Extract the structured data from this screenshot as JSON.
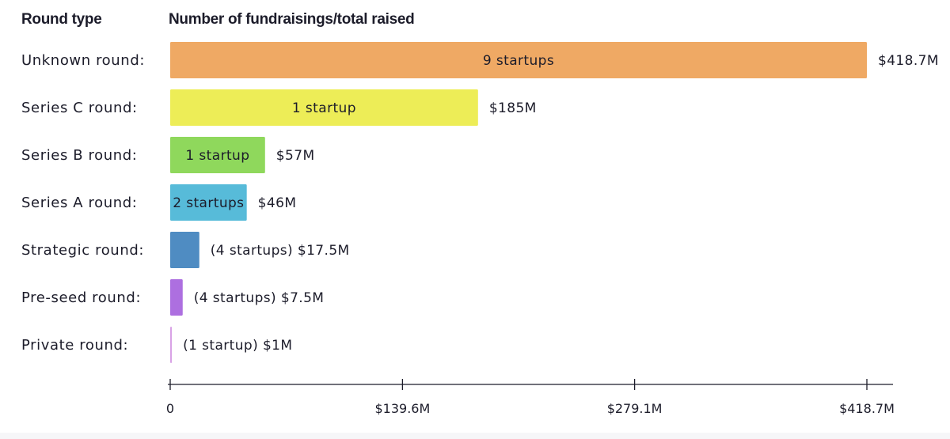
{
  "headers": {
    "round_type": "Round type",
    "metric": "Number of fundraisings/total raised"
  },
  "chart_data": {
    "type": "bar",
    "orientation": "horizontal",
    "title": "",
    "xlabel": "",
    "ylabel": "",
    "xlim": [
      0,
      418.7
    ],
    "x_unit": "$M",
    "ticks": [
      {
        "value": 0,
        "label": "0"
      },
      {
        "value": 139.6,
        "label": "$139.6M"
      },
      {
        "value": 279.1,
        "label": "$279.1M"
      },
      {
        "value": 418.7,
        "label": "$418.7M"
      }
    ],
    "categories": [
      "Unknown round:",
      "Series C round:",
      "Series B round:",
      "Series A round:",
      "Strategic round:",
      "Pre-seed round:",
      "Private round:"
    ],
    "values": [
      418.7,
      185,
      57,
      46,
      17.5,
      7.5,
      1
    ],
    "bars": [
      {
        "category": "Unknown round:",
        "value": 418.7,
        "startups": 9,
        "inside_label": "9 startups",
        "outside_label": "$418.7M",
        "color": "#efa964"
      },
      {
        "category": "Series C round:",
        "value": 185,
        "startups": 1,
        "inside_label": "1 startup",
        "outside_label": "$185M",
        "color": "#eded57"
      },
      {
        "category": "Series B round:",
        "value": 57,
        "startups": 1,
        "inside_label": "1 startup",
        "outside_label": "$57M",
        "color": "#8fd85c"
      },
      {
        "category": "Series A round:",
        "value": 46,
        "startups": 2,
        "inside_label": "2 startups",
        "outside_label": "$46M",
        "color": "#57bbd9"
      },
      {
        "category": "Strategic round:",
        "value": 17.5,
        "startups": 4,
        "inside_label": "",
        "outside_label": "(4 startups) $17.5M",
        "color": "#4f8cc2"
      },
      {
        "category": "Pre-seed round:",
        "value": 7.5,
        "startups": 4,
        "inside_label": "",
        "outside_label": "(4 startups) $7.5M",
        "color": "#ad6fe0"
      },
      {
        "category": "Private round:",
        "value": 1,
        "startups": 1,
        "inside_label": "",
        "outside_label": "(1 startup) $1M",
        "color": "#d9a3e6"
      }
    ],
    "grid": false,
    "legend": "none"
  }
}
